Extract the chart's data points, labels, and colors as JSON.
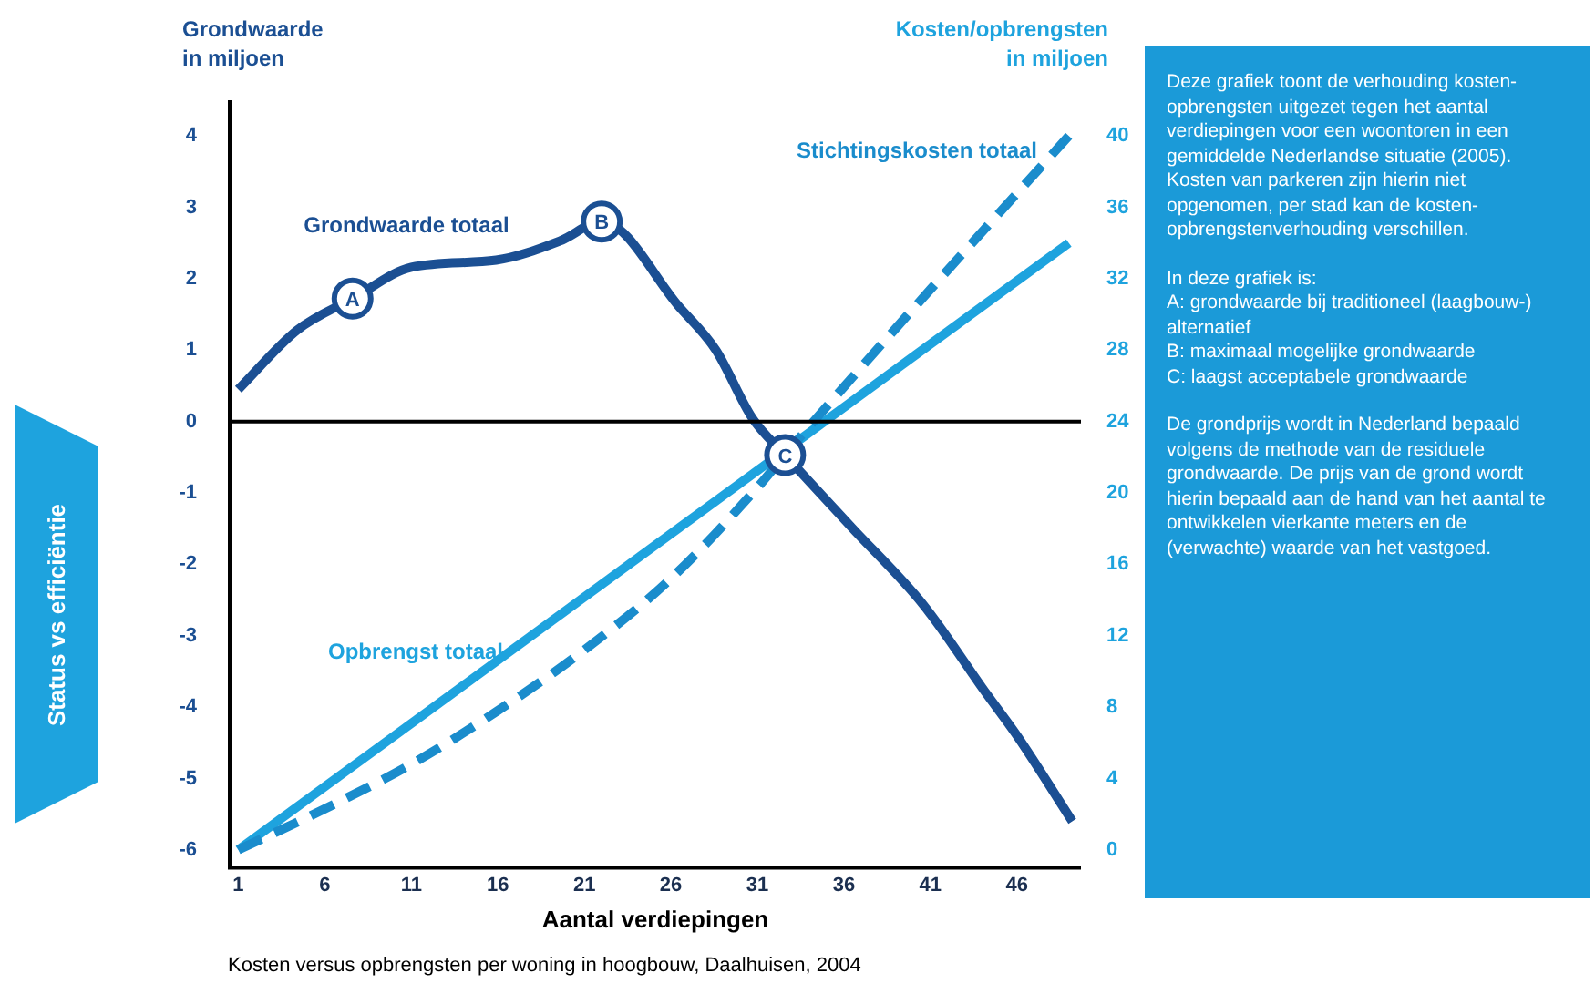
{
  "chart_data": {
    "type": "line",
    "xlabel": "Aantal verdiepingen",
    "ylabel": "Grondwaarde\nin miljoen",
    "y2label": "Kosten/opbrengsten\nin miljoen",
    "xlim": [
      0.5,
      49.7
    ],
    "xticks": [
      1,
      6,
      11,
      16,
      21,
      26,
      31,
      36,
      41,
      46
    ],
    "ylim": [
      -6.25,
      4.5
    ],
    "yticks": [
      -6,
      -5,
      -4,
      -3,
      -2,
      -1,
      0,
      1,
      2,
      3,
      4
    ],
    "y2lim": [
      -1,
      42
    ],
    "y2ticks": [
      0,
      4,
      8,
      12,
      16,
      20,
      24,
      28,
      32,
      36,
      40
    ],
    "grid": false,
    "legend": false,
    "marker": "none",
    "series": [
      {
        "name": "Grondwaarde totaal",
        "color": "#1b4f93",
        "line_style": "solid",
        "x": [
          1,
          4.4,
          7.6,
          11,
          15.9,
          19.6,
          22,
          26.5,
          28.6,
          30.7,
          32.6,
          36.4,
          40.6,
          44.2,
          46,
          49.2
        ],
        "values": [
          0.45,
          1.28,
          1.72,
          2.16,
          2.26,
          2.53,
          2.8,
          1.6,
          1.0,
          0.05,
          -0.47,
          -1.47,
          -2.57,
          -3.8,
          -4.4,
          -5.6
        ]
      },
      {
        "name": "Stichtingskosten totaal",
        "color": "#1a8ccc",
        "line_style": "dashed",
        "axis": "y2",
        "x": [
          1,
          6,
          11,
          16,
          21,
          26,
          31,
          33,
          41,
          49
        ],
        "values": [
          0,
          2.3,
          4.8,
          7.8,
          11.2,
          15.2,
          20.3,
          22.6,
          31.4,
          40
        ]
      },
      {
        "name": "Opbrengst totaal",
        "color": "#1ea3de",
        "line_style": "solid",
        "axis": "y2",
        "x": [
          1,
          49
        ],
        "values": [
          0,
          34
        ]
      }
    ],
    "ref_lines": [
      {
        "axis": "y",
        "value": 0,
        "color": "#000000"
      }
    ],
    "annotations": [
      "Status vs efficiëntie",
      "Kosten versus opbrengsten per woning in hoogbouw, Daalhuisen, 2004",
      "Deze grafiek toont de verhouding kosten-opbrengsten uitgezet tegen het aantal verdiepingen voor een woontoren in een gemiddelde Nederlandse situatie (2005). Kosten van parkeren zijn hierin niet opgenomen, per stad kan de kosten-opbrengstenverhouding verschillen.",
      "In deze grafiek is:\nA: grondwaarde bij traditioneel (laagbouw-) alternatief\nB: maximaal mogelijke grondwaarde\nC: laagst acceptabele grondwaarde",
      "De grondprijs wordt in Nederland bepaald volgens de methode van de residuele grondwaarde. De prijs van de grond wordt hierin bepaald aan de hand van het aantal te ontwikkelen vierkante meters en de (verwachte) waarde van het vastgoed.",
      {
        "text": "A",
        "x": 7.6,
        "y": 1.72
      },
      {
        "text": "B",
        "x": 22,
        "y": 2.8
      },
      {
        "text": "C",
        "x": 32.6,
        "y": -0.47
      }
    ]
  }
}
